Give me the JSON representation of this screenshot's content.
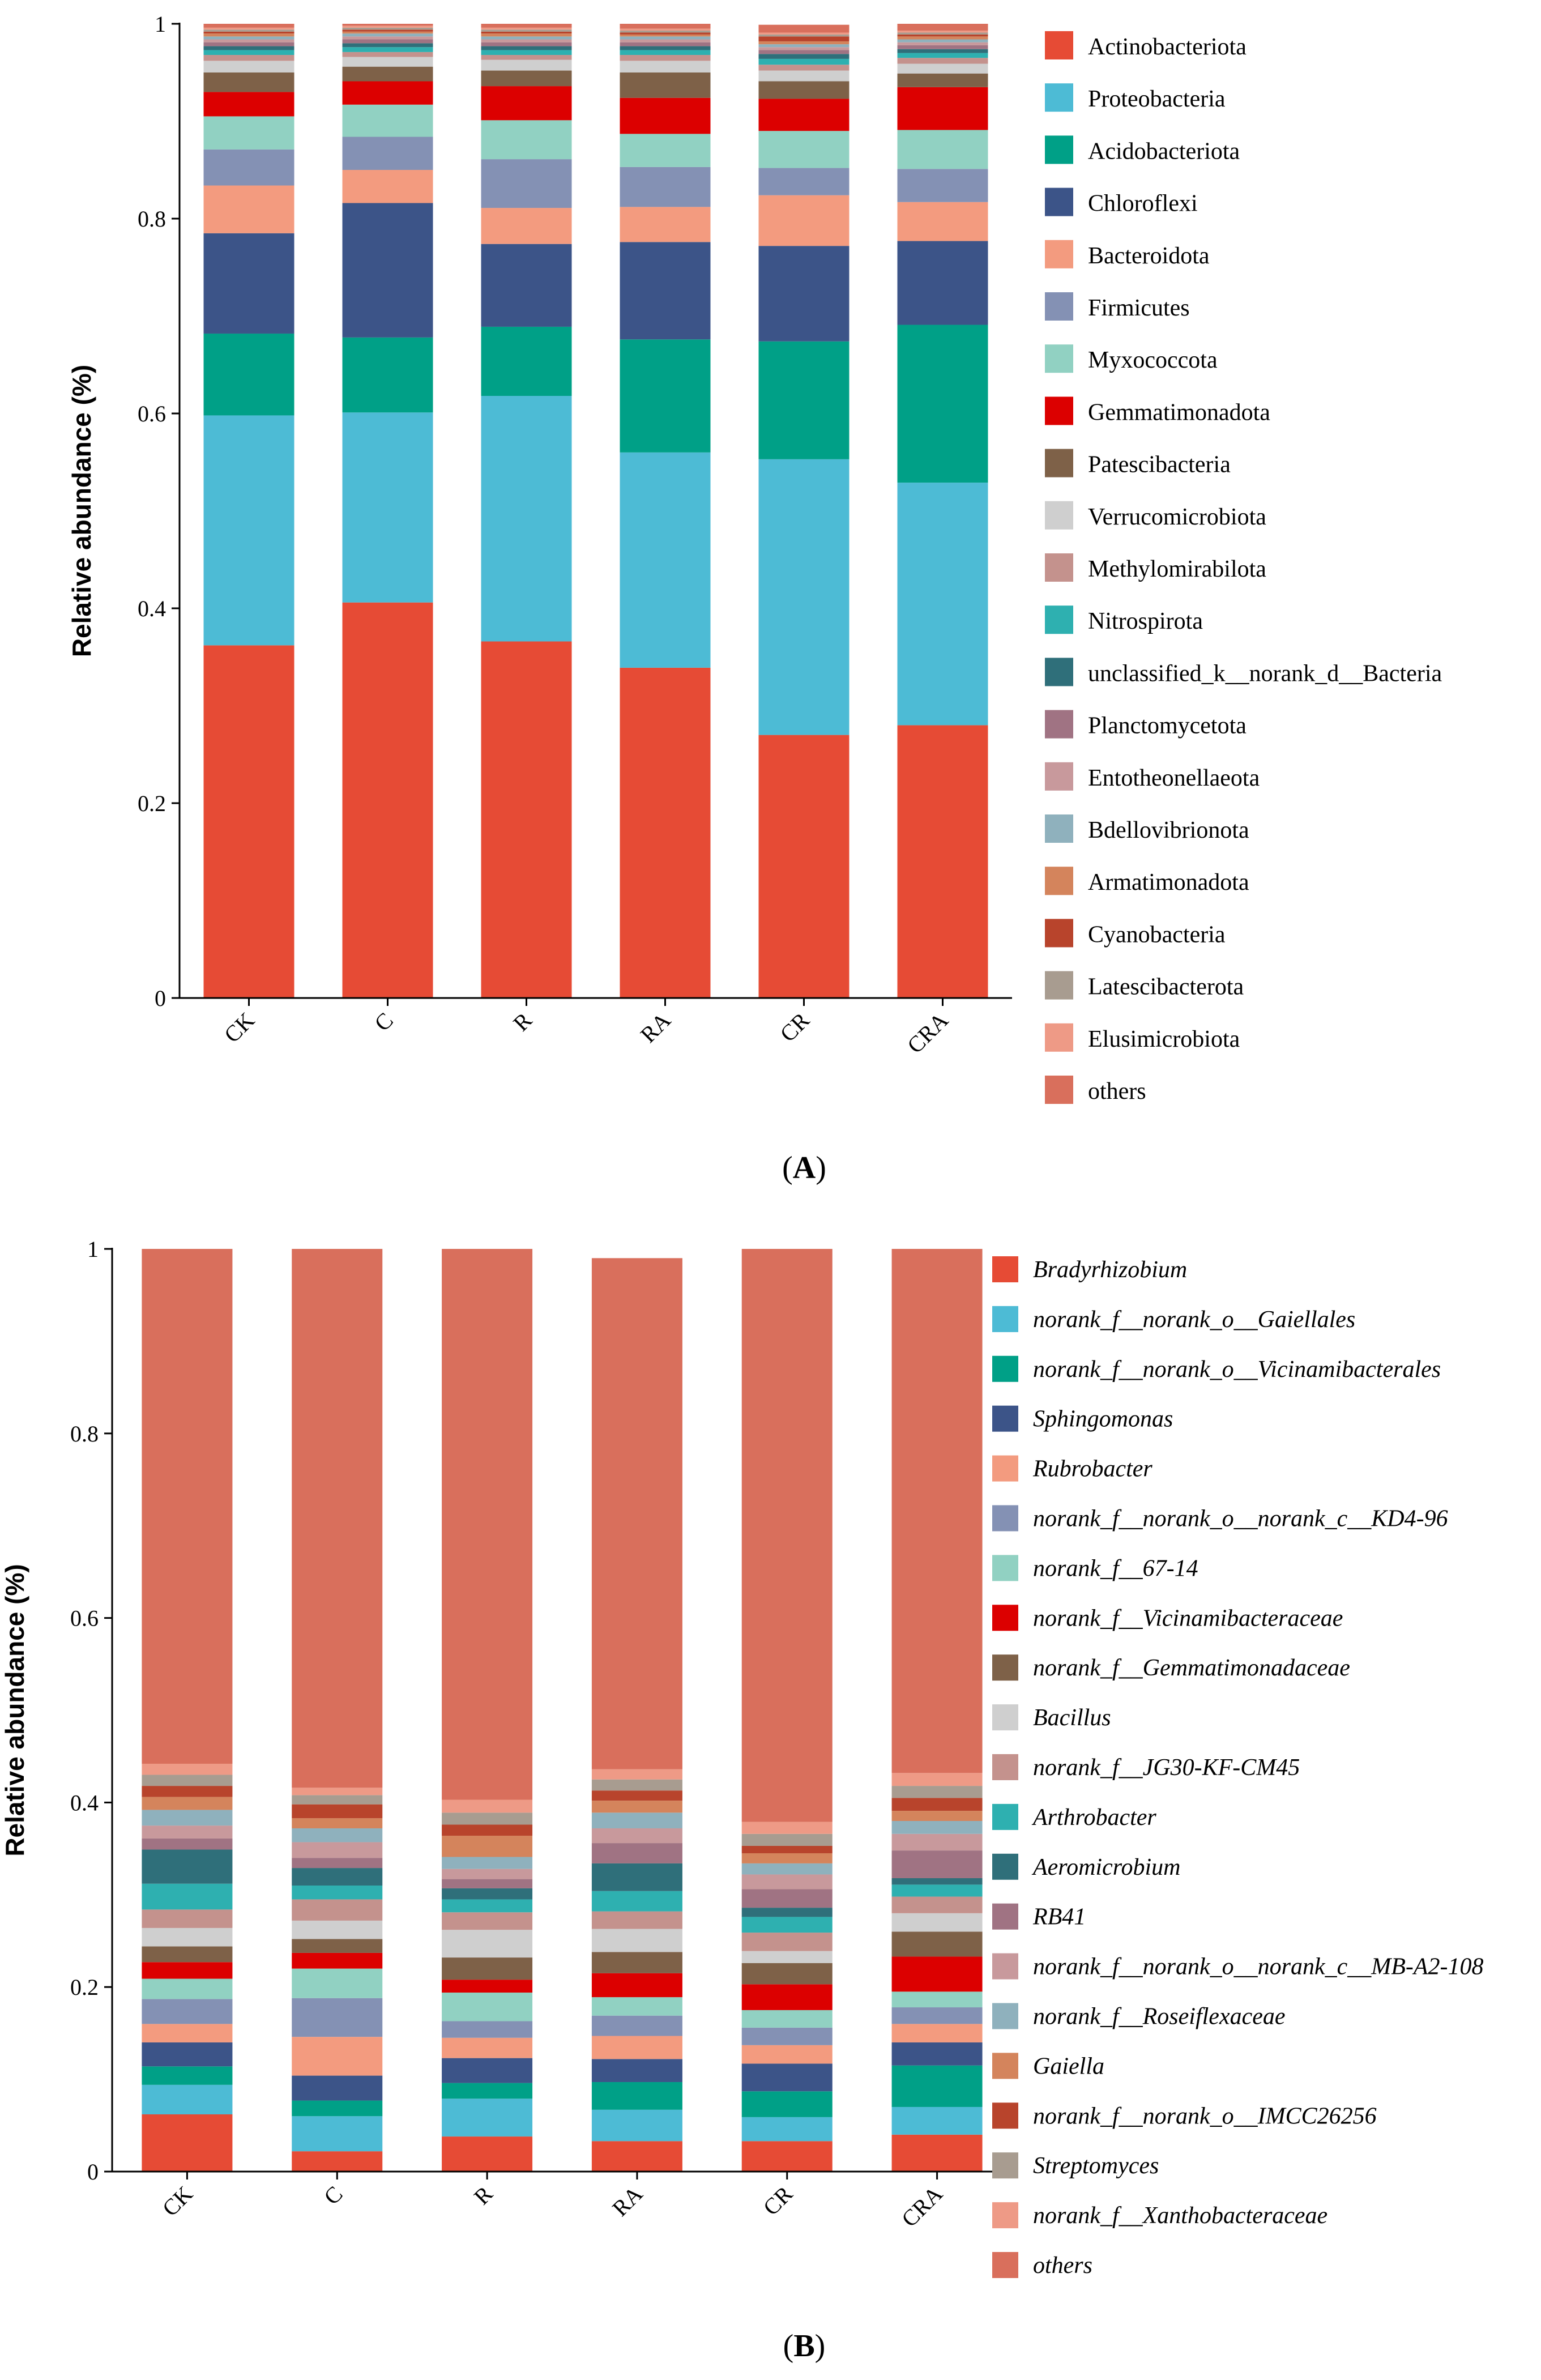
{
  "panel_labels": [
    "A",
    "B"
  ],
  "chart_data": [
    {
      "type": "bar",
      "stacked": true,
      "panel": "A",
      "title": "",
      "xlabel": "",
      "ylabel": "Relative abundance (%)",
      "ylim": [
        0,
        1
      ],
      "yticks": [
        0,
        0.2,
        0.4,
        0.6,
        0.8,
        1
      ],
      "ytick_labels": [
        "0",
        "0.2",
        "0.4",
        "0.6",
        "0.8",
        "1"
      ],
      "categories": [
        "CK",
        "C",
        "R",
        "RA",
        "CR",
        "CRA"
      ],
      "legend_position": "right",
      "series": [
        {
          "name": "Actinobacteriota",
          "color": "#e64b35",
          "values": [
            0.362,
            0.406,
            0.366,
            0.339,
            0.27,
            0.28
          ]
        },
        {
          "name": "Proteobacteria",
          "color": "#4dbbd5",
          "values": [
            0.236,
            0.195,
            0.252,
            0.221,
            0.283,
            0.249
          ]
        },
        {
          "name": "Acidobacteriota",
          "color": "#00a087",
          "values": [
            0.084,
            0.077,
            0.071,
            0.116,
            0.121,
            0.162
          ]
        },
        {
          "name": "Chloroflexi",
          "color": "#3c5488",
          "values": [
            0.103,
            0.138,
            0.085,
            0.1,
            0.098,
            0.086
          ]
        },
        {
          "name": "Bacteroidota",
          "color": "#f39b7f",
          "values": [
            0.049,
            0.034,
            0.037,
            0.036,
            0.052,
            0.04
          ]
        },
        {
          "name": "Firmicutes",
          "color": "#8491b4",
          "values": [
            0.037,
            0.034,
            0.05,
            0.041,
            0.028,
            0.034
          ]
        },
        {
          "name": "Myxococcota",
          "color": "#91d1c2",
          "values": [
            0.034,
            0.033,
            0.04,
            0.034,
            0.038,
            0.04
          ]
        },
        {
          "name": "Gemmatimonadota",
          "color": "#dc0000",
          "values": [
            0.025,
            0.024,
            0.035,
            0.037,
            0.033,
            0.044
          ]
        },
        {
          "name": "Patescibacteria",
          "color": "#7e6148",
          "values": [
            0.02,
            0.015,
            0.016,
            0.026,
            0.018,
            0.014
          ]
        },
        {
          "name": "Verrucomicrobiota",
          "color": "#cfcfcf",
          "values": [
            0.012,
            0.01,
            0.011,
            0.012,
            0.011,
            0.01
          ]
        },
        {
          "name": "Methylomirabilota",
          "color": "#c4928d",
          "values": [
            0.006,
            0.005,
            0.005,
            0.006,
            0.006,
            0.006
          ]
        },
        {
          "name": "Nitrospirota",
          "color": "#2eb0b0",
          "values": [
            0.005,
            0.005,
            0.005,
            0.005,
            0.006,
            0.005
          ]
        },
        {
          "name": "unclassified_k__norank_d__Bacteria",
          "color": "#2f6f7a",
          "values": [
            0.004,
            0.004,
            0.004,
            0.004,
            0.005,
            0.004
          ]
        },
        {
          "name": "Planctomycetota",
          "color": "#a07383",
          "values": [
            0.004,
            0.004,
            0.004,
            0.004,
            0.004,
            0.004
          ]
        },
        {
          "name": "Entotheonellaeota",
          "color": "#c8999c",
          "values": [
            0.003,
            0.003,
            0.003,
            0.003,
            0.003,
            0.003
          ]
        },
        {
          "name": "Bdellovibrionota",
          "color": "#8fb1bd",
          "values": [
            0.003,
            0.003,
            0.003,
            0.003,
            0.003,
            0.003
          ]
        },
        {
          "name": "Armatimonadota",
          "color": "#d4845c",
          "values": [
            0.003,
            0.002,
            0.003,
            0.002,
            0.003,
            0.003
          ]
        },
        {
          "name": "Cyanobacteria",
          "color": "#b8442c",
          "values": [
            0.002,
            0.002,
            0.002,
            0.002,
            0.005,
            0.002
          ]
        },
        {
          "name": "Latescibacterota",
          "color": "#a89c90",
          "values": [
            0.002,
            0.002,
            0.002,
            0.002,
            0.002,
            0.002
          ]
        },
        {
          "name": "Elusimicrobiota",
          "color": "#ee9a86",
          "values": [
            0.002,
            0.002,
            0.002,
            0.002,
            0.002,
            0.002
          ]
        },
        {
          "name": "others",
          "color": "#d96f5c",
          "values": [
            0.004,
            0.002,
            0.004,
            0.005,
            0.008,
            0.007
          ]
        }
      ]
    },
    {
      "type": "bar",
      "stacked": true,
      "panel": "B",
      "title": "",
      "xlabel": "",
      "ylabel": "Relative abundance (%)",
      "ylim": [
        0,
        1
      ],
      "yticks": [
        0,
        0.2,
        0.4,
        0.6,
        0.8,
        1
      ],
      "ytick_labels": [
        "0",
        "0.2",
        "0.4",
        "0.6",
        "0.8",
        "1"
      ],
      "categories": [
        "CK",
        "C",
        "R",
        "RA",
        "CR",
        "CRA"
      ],
      "legend_position": "right",
      "series": [
        {
          "name": "Bradyrhizobium",
          "color": "#e64b35",
          "values": [
            0.062,
            0.022,
            0.038,
            0.033,
            0.033,
            0.04
          ]
        },
        {
          "name": "norank_f__norank_o__Gaiellales",
          "color": "#4dbbd5",
          "values": [
            0.032,
            0.038,
            0.041,
            0.034,
            0.026,
            0.03
          ]
        },
        {
          "name": "norank_f__norank_o__Vicinamibacterales",
          "color": "#00a087",
          "values": [
            0.02,
            0.017,
            0.017,
            0.03,
            0.028,
            0.045
          ]
        },
        {
          "name": "Sphingomonas",
          "color": "#3c5488",
          "values": [
            0.026,
            0.027,
            0.027,
            0.025,
            0.03,
            0.025
          ]
        },
        {
          "name": "Rubrobacter",
          "color": "#f39b7f",
          "values": [
            0.02,
            0.042,
            0.022,
            0.025,
            0.02,
            0.02
          ]
        },
        {
          "name": "norank_f__norank_o__norank_c__KD4-96",
          "color": "#8491b4",
          "values": [
            0.027,
            0.042,
            0.018,
            0.022,
            0.019,
            0.018
          ]
        },
        {
          "name": "norank_f__67-14",
          "color": "#91d1c2",
          "values": [
            0.022,
            0.032,
            0.031,
            0.02,
            0.019,
            0.017
          ]
        },
        {
          "name": "norank_f__Vicinamibacteraceae",
          "color": "#dc0000",
          "values": [
            0.018,
            0.017,
            0.014,
            0.026,
            0.028,
            0.038
          ]
        },
        {
          "name": "norank_f__Gemmatimonadaceae",
          "color": "#7e6148",
          "values": [
            0.017,
            0.015,
            0.024,
            0.023,
            0.023,
            0.027
          ]
        },
        {
          "name": "Bacillus",
          "color": "#cfcfcf",
          "values": [
            0.02,
            0.02,
            0.03,
            0.025,
            0.013,
            0.02
          ]
        },
        {
          "name": "norank_f__JG30-KF-CM45",
          "color": "#c4928d",
          "values": [
            0.02,
            0.023,
            0.019,
            0.019,
            0.02,
            0.018
          ]
        },
        {
          "name": "Arthrobacter",
          "color": "#2eb0b0",
          "values": [
            0.028,
            0.015,
            0.014,
            0.022,
            0.017,
            0.013
          ]
        },
        {
          "name": "Aeromicrobium",
          "color": "#2f6f7a",
          "values": [
            0.037,
            0.019,
            0.012,
            0.03,
            0.01,
            0.007
          ]
        },
        {
          "name": "RB41",
          "color": "#a07383",
          "values": [
            0.012,
            0.011,
            0.01,
            0.022,
            0.02,
            0.03
          ]
        },
        {
          "name": "norank_f__norank_o__norank_c__MB-A2-108",
          "color": "#c8999c",
          "values": [
            0.014,
            0.017,
            0.011,
            0.016,
            0.016,
            0.018
          ]
        },
        {
          "name": "norank_f__Roseiflexaceae",
          "color": "#8fb1bd",
          "values": [
            0.017,
            0.015,
            0.013,
            0.017,
            0.012,
            0.014
          ]
        },
        {
          "name": "Gaiella",
          "color": "#d4845c",
          "values": [
            0.014,
            0.011,
            0.023,
            0.013,
            0.011,
            0.011
          ]
        },
        {
          "name": "norank_f__norank_o__IMCC26256",
          "color": "#b8442c",
          "values": [
            0.012,
            0.015,
            0.012,
            0.011,
            0.008,
            0.014
          ]
        },
        {
          "name": "Streptomyces",
          "color": "#a89c90",
          "values": [
            0.012,
            0.01,
            0.013,
            0.012,
            0.013,
            0.013
          ]
        },
        {
          "name": "norank_f__Xanthobacteraceae",
          "color": "#ee9a86",
          "values": [
            0.012,
            0.008,
            0.014,
            0.011,
            0.013,
            0.014
          ]
        },
        {
          "name": "others",
          "color": "#d96f5c",
          "values": [
            0.558,
            0.584,
            0.597,
            0.554,
            0.621,
            0.568
          ]
        }
      ]
    }
  ]
}
